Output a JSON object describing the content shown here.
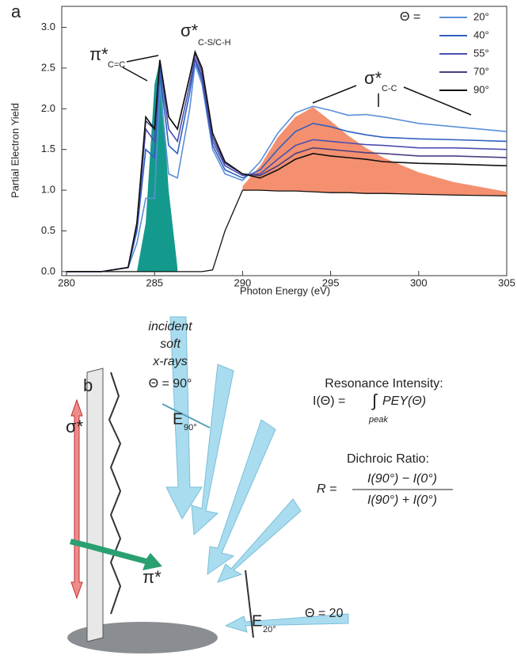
{
  "chart_data": {
    "type": "line",
    "panel_label": "a",
    "x_label": "Photon Energy (eV)",
    "y_label": "Partial Electron Yield",
    "legend_title": "Θ =",
    "xlim": [
      280,
      305
    ],
    "xticks": [
      280,
      285,
      290,
      295,
      300,
      305
    ],
    "ylim": [
      -0.05,
      3.2
    ],
    "yticks": [
      {
        "value": 0,
        "label": "0.0"
      },
      0.5,
      {
        "value": 1,
        "label": "1.0"
      },
      1.5,
      {
        "value": 2,
        "label": "2.0"
      },
      2.5,
      {
        "value": 3,
        "label": "3.0"
      }
    ],
    "x": [
      280,
      282,
      283.5,
      284,
      284.5,
      285,
      285.3,
      285.8,
      286.3,
      287,
      287.3,
      287.7,
      288.3,
      289,
      290,
      291,
      292,
      293,
      294,
      295,
      296,
      297,
      298,
      300,
      302,
      305
    ],
    "series": [
      {
        "name": "20°",
        "color": "#5b8fd8",
        "values": [
          0,
          0,
          0.05,
          0.35,
          0.9,
          0.9,
          2.3,
          1.2,
          1.15,
          2.0,
          2.55,
          2.3,
          1.5,
          1.2,
          1.12,
          1.35,
          1.7,
          1.95,
          2.03,
          1.98,
          1.92,
          1.93,
          1.9,
          1.82,
          1.78,
          1.72
        ]
      },
      {
        "name": "40°",
        "color": "#2f5fbf",
        "values": [
          0,
          0,
          0.05,
          0.5,
          1.5,
          1.4,
          2.45,
          1.55,
          1.45,
          2.2,
          2.6,
          2.35,
          1.55,
          1.25,
          1.15,
          1.25,
          1.5,
          1.72,
          1.82,
          1.78,
          1.72,
          1.68,
          1.65,
          1.63,
          1.62,
          1.6
        ]
      },
      {
        "name": "55°",
        "color": "#4a4fb0",
        "values": [
          0,
          0,
          0.05,
          0.55,
          1.75,
          1.6,
          2.55,
          1.75,
          1.6,
          2.3,
          2.62,
          2.4,
          1.6,
          1.3,
          1.18,
          1.2,
          1.38,
          1.55,
          1.62,
          1.6,
          1.58,
          1.56,
          1.55,
          1.52,
          1.52,
          1.5
        ]
      },
      {
        "name": "70°",
        "color": "#4a3f80",
        "values": [
          0,
          0,
          0.05,
          0.6,
          1.85,
          1.75,
          2.6,
          1.9,
          1.75,
          2.4,
          2.68,
          2.45,
          1.65,
          1.33,
          1.2,
          1.18,
          1.3,
          1.45,
          1.52,
          1.5,
          1.48,
          1.46,
          1.45,
          1.42,
          1.42,
          1.4
        ]
      },
      {
        "name": "90°",
        "color": "#111111",
        "values": [
          0,
          0,
          0.05,
          0.6,
          1.9,
          1.75,
          2.6,
          1.9,
          1.75,
          2.4,
          2.7,
          2.5,
          1.7,
          1.35,
          1.2,
          1.15,
          1.25,
          1.38,
          1.45,
          1.42,
          1.4,
          1.38,
          1.35,
          1.33,
          1.32,
          1.3
        ]
      }
    ],
    "areas": [
      {
        "color": "#f4906f",
        "values": [
          null,
          null,
          null,
          null,
          null,
          null,
          null,
          null,
          null,
          null,
          null,
          null,
          null,
          null,
          1.05,
          1.3,
          1.65,
          1.9,
          2.02,
          1.85,
          1.67,
          1.52,
          1.4,
          1.22,
          1.1,
          0.98
        ]
      },
      {
        "color": "#149a8c",
        "values": [
          null,
          null,
          null,
          0,
          0.6,
          2.3,
          2.6,
          1.0,
          0.05,
          null,
          null,
          null,
          null,
          null,
          null,
          null,
          null,
          null,
          null,
          null,
          null,
          null,
          null,
          null,
          null,
          null
        ]
      }
    ],
    "edge": {
      "color": "#111111",
      "values": [
        0,
        0,
        0,
        0,
        0,
        0,
        0,
        0,
        0,
        0,
        0,
        0,
        0.02,
        0.5,
        1.0,
        1.0,
        0.99,
        0.99,
        0.98,
        0.97,
        0.97,
        0.96,
        0.96,
        0.95,
        0.94,
        0.93
      ]
    },
    "annotations": [
      {
        "text": "π*",
        "sub": "C=C"
      },
      {
        "text": "σ*",
        "sub": "C-S/C-H"
      },
      {
        "text": "σ*",
        "sub": "C-C"
      }
    ]
  },
  "diagram": {
    "panel_label": "b",
    "incident": [
      "incident",
      "soft",
      "x-rays"
    ],
    "theta_90": "Θ = 90°",
    "theta_20": "Θ = 20",
    "sigma": "σ*",
    "pi": "π*",
    "e90": {
      "text": "E",
      "sub": "90°"
    },
    "e20": {
      "text": "E",
      "sub": "20°"
    },
    "resonance_title": "Resonance Intensity:",
    "resonance_lhs": "I(Θ) =",
    "resonance_rhs": "PEY(Θ)",
    "resonance_sub": "peak",
    "dichroic_title": "Dichroic Ratio:",
    "dichroic_lhs": "R =",
    "dichroic_num": "I(90°) − I(0°)",
    "dichroic_den": "I(90°) + I(0°)"
  }
}
